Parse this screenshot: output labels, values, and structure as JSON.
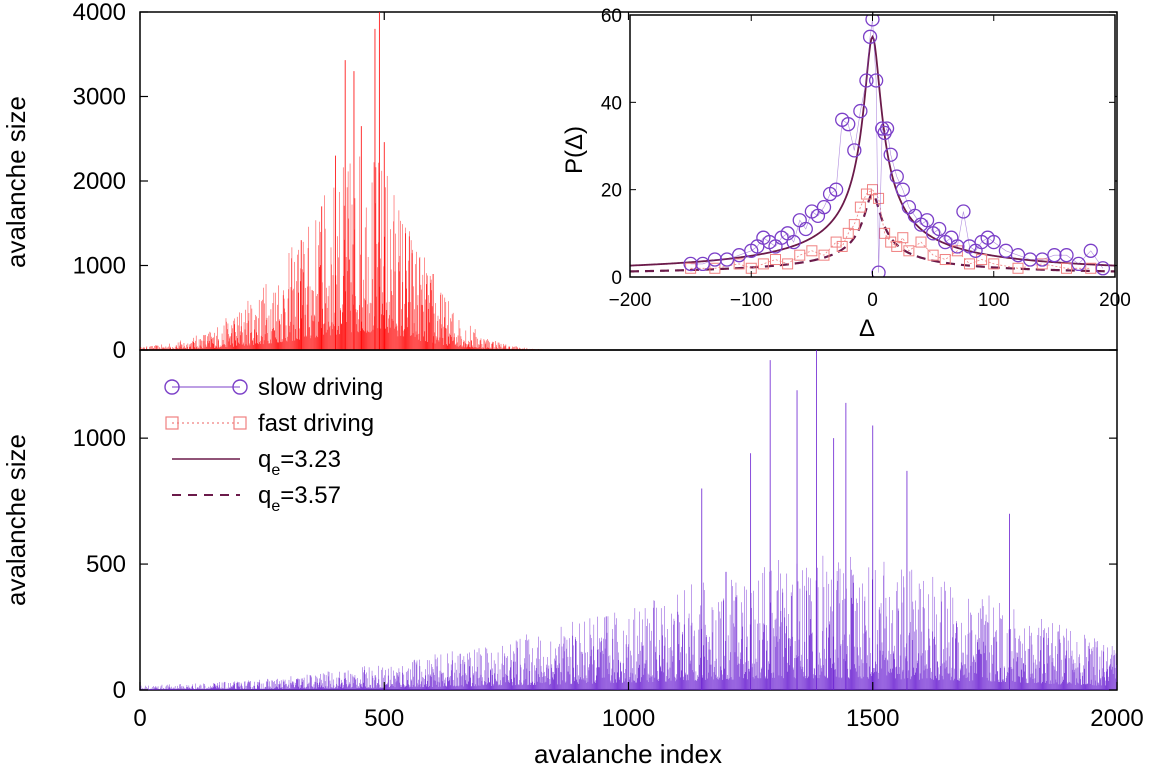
{
  "chart_data": [
    {
      "type": "bar",
      "panel": "top",
      "color": "#ff0000",
      "xlim": [
        0,
        2000
      ],
      "ylim": [
        0,
        4000
      ],
      "yticks": [
        "0",
        "1000",
        "2000",
        "3000",
        "4000"
      ],
      "ylabel": "avalanche size",
      "envelope_x": [
        0,
        50,
        100,
        150,
        200,
        250,
        300,
        350,
        400,
        450,
        500,
        550,
        600,
        650,
        700,
        750,
        800,
        850
      ],
      "envelope_y": [
        20,
        40,
        80,
        150,
        280,
        450,
        650,
        900,
        1200,
        1400,
        1300,
        900,
        500,
        250,
        110,
        40,
        10,
        0
      ],
      "peaks": [
        {
          "x": 490,
          "y": 4000
        },
        {
          "x": 481,
          "y": 3800
        },
        {
          "x": 420,
          "y": 3430
        },
        {
          "x": 438,
          "y": 3300
        },
        {
          "x": 453,
          "y": 2650
        },
        {
          "x": 500,
          "y": 2460
        },
        {
          "x": 400,
          "y": 2300
        },
        {
          "x": 372,
          "y": 1700
        },
        {
          "x": 330,
          "y": 1300
        },
        {
          "x": 600,
          "y": 900
        }
      ]
    },
    {
      "type": "bar",
      "panel": "bottom",
      "color": "#6a1fd1",
      "xlim": [
        0,
        2000
      ],
      "ylim": [
        0,
        1350
      ],
      "xticks": [
        "0",
        "500",
        "1000",
        "1500",
        "2000"
      ],
      "yticks": [
        "0",
        "500",
        "1000"
      ],
      "xlabel": "avalanche index",
      "ylabel": "avalanche size",
      "envelope_x": [
        0,
        100,
        200,
        300,
        400,
        500,
        600,
        700,
        800,
        900,
        1000,
        1100,
        1200,
        1300,
        1400,
        1500,
        1600,
        1700,
        1800,
        1900,
        2000
      ],
      "envelope_y": [
        10,
        15,
        20,
        30,
        45,
        60,
        80,
        100,
        130,
        160,
        190,
        230,
        270,
        300,
        310,
        300,
        270,
        230,
        190,
        140,
        100
      ],
      "peaks": [
        {
          "x": 1385,
          "y": 1350
        },
        {
          "x": 1290,
          "y": 1310
        },
        {
          "x": 1345,
          "y": 1190
        },
        {
          "x": 1445,
          "y": 1140
        },
        {
          "x": 1500,
          "y": 1050
        },
        {
          "x": 1420,
          "y": 1000
        },
        {
          "x": 1250,
          "y": 940
        },
        {
          "x": 1570,
          "y": 870
        },
        {
          "x": 1150,
          "y": 800
        },
        {
          "x": 1780,
          "y": 700
        }
      ],
      "legend": [
        {
          "label": "slow driving",
          "style": "circle-line",
          "color": "#7b3fc8"
        },
        {
          "label": "fast driving",
          "style": "square-dotted",
          "color": "#f08080"
        },
        {
          "label": "q",
          "sub": "e",
          "suffix": "=3.23",
          "style": "solid",
          "color": "#6b1a4a"
        },
        {
          "label": "q",
          "sub": "e",
          "suffix": "=3.57",
          "style": "dashed",
          "color": "#6b1a4a"
        }
      ]
    },
    {
      "type": "scatter",
      "panel": "inset",
      "xlim": [
        -200,
        200
      ],
      "ylim": [
        0,
        60
      ],
      "xticks": [
        "-200",
        "-100",
        "0",
        "100",
        "200"
      ],
      "xtick_values": [
        -200,
        -100,
        0,
        100,
        200
      ],
      "yticks": [
        "0",
        "20",
        "40",
        "60"
      ],
      "ytick_values": [
        0,
        20,
        40,
        60
      ],
      "xlabel": "Δ",
      "ylabel": "P(Δ)",
      "series": [
        {
          "name": "slow driving",
          "marker": "circle",
          "color": "#7b3fc8",
          "x": [
            -150,
            -140,
            -130,
            -120,
            -110,
            -100,
            -95,
            -90,
            -85,
            -80,
            -75,
            -70,
            -65,
            -60,
            -55,
            -50,
            -45,
            -40,
            -35,
            -30,
            -25,
            -20,
            -15,
            -10,
            -5,
            -2,
            0,
            3,
            5,
            8,
            10,
            12,
            15,
            20,
            25,
            30,
            35,
            40,
            45,
            50,
            55,
            60,
            65,
            70,
            75,
            80,
            85,
            90,
            95,
            100,
            110,
            120,
            130,
            140,
            150,
            160,
            170,
            180,
            190
          ],
          "y": [
            3,
            3,
            4,
            4,
            5,
            6,
            7,
            9,
            8,
            7,
            9,
            10,
            8,
            13,
            11,
            15,
            14,
            16,
            19,
            20,
            36,
            35,
            29,
            38,
            45,
            55,
            59,
            45,
            1,
            34,
            33,
            34,
            28,
            23,
            20,
            16,
            14,
            12,
            13,
            10,
            11,
            8,
            9,
            7,
            15,
            7,
            6,
            8,
            9,
            8,
            6,
            5,
            4,
            4,
            5,
            5,
            3,
            6,
            2
          ]
        },
        {
          "name": "fast driving",
          "marker": "square",
          "color": "#f08080",
          "x": [
            -150,
            -130,
            -110,
            -100,
            -90,
            -80,
            -70,
            -60,
            -50,
            -40,
            -30,
            -25,
            -20,
            -15,
            -10,
            -5,
            0,
            5,
            10,
            15,
            20,
            25,
            30,
            40,
            50,
            60,
            70,
            80,
            90,
            100,
            120,
            140,
            160,
            180
          ],
          "y": [
            2,
            2,
            3,
            2,
            3,
            4,
            3,
            5,
            6,
            5,
            8,
            7,
            10,
            12,
            16,
            19,
            20,
            18,
            10,
            8,
            7,
            9,
            6,
            8,
            5,
            4,
            6,
            3,
            4,
            3,
            2,
            3,
            2,
            2
          ]
        },
        {
          "name": "q_e=3.23",
          "style": "solid",
          "color": "#6b1a4a",
          "amplitude": 55,
          "width": 10,
          "q": 3.23
        },
        {
          "name": "q_e=3.57",
          "style": "dashed",
          "color": "#6b1a4a",
          "amplitude": 19,
          "width": 10,
          "q": 3.57
        }
      ]
    }
  ]
}
